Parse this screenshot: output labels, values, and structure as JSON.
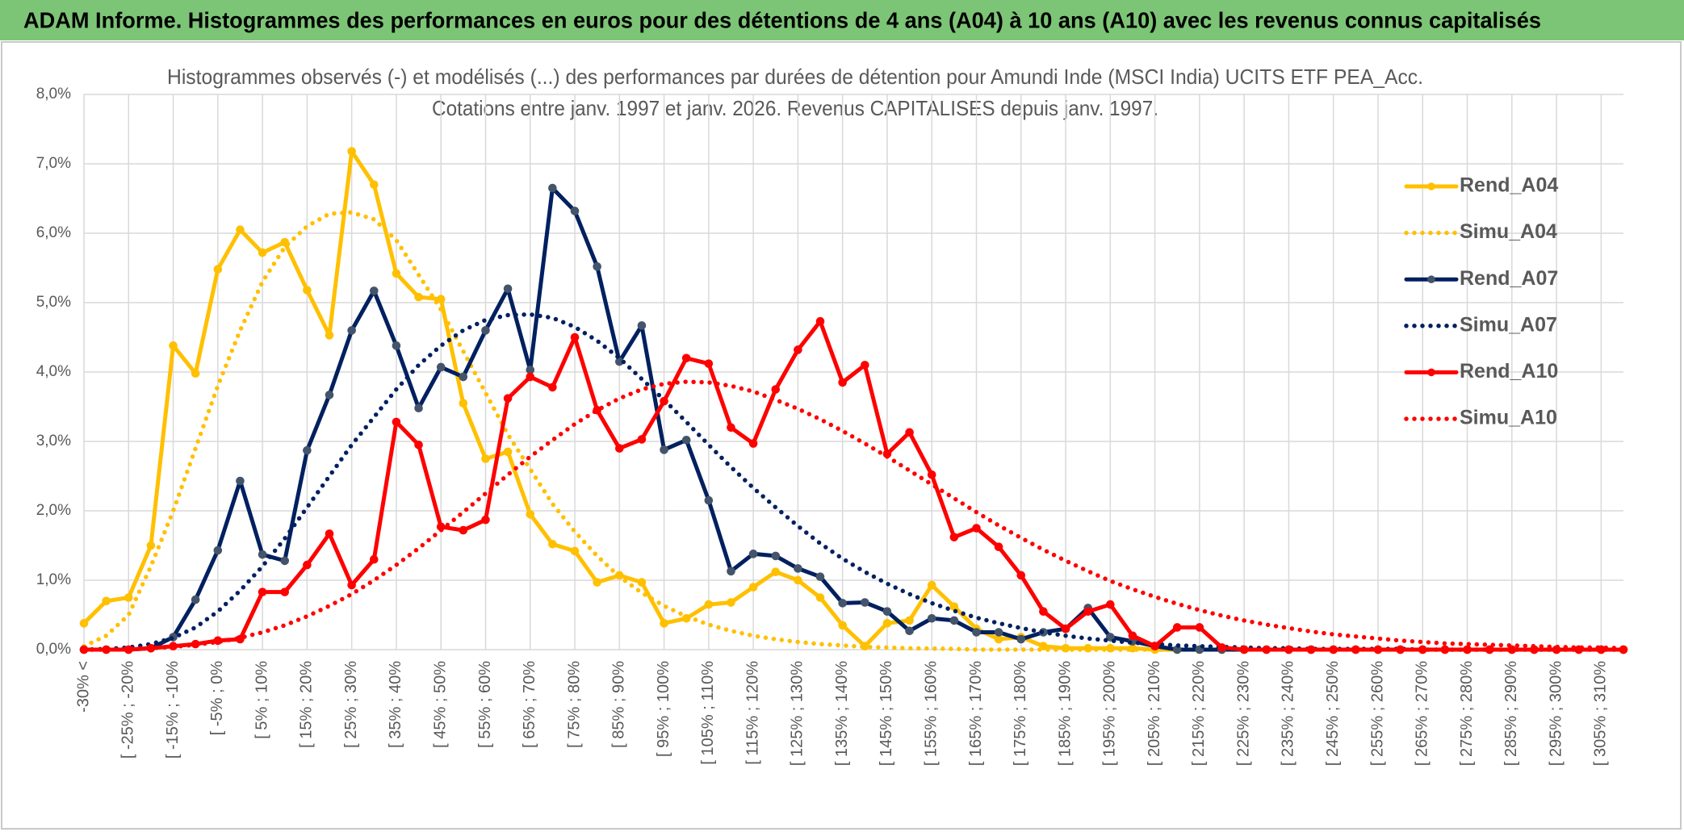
{
  "header": {
    "title": "ADAM Informe. Histogrammes des performances en euros pour des détentions de 4 ans (A04) à 10 ans (A10) avec les revenus connus capitalisés"
  },
  "chart_data": {
    "type": "line",
    "title": "Histogrammes observés (-) et modélisés (...) des performances par durées de détention pour Amundi Inde (MSCI India) UCITS ETF PEA_Acc.",
    "subtitle": "Cotations entre janv. 1997 et janv. 2026. Revenus CAPITALISES depuis janv. 1997.",
    "categories": [
      "-30% <",
      null,
      "[ -25% ; -20%",
      null,
      "[ -15% ; -10%",
      null,
      "[ -5% ; 0%",
      null,
      "[ 5% ; 10%",
      null,
      "[ 15% ; 20%",
      null,
      "[ 25% ; 30%",
      null,
      "[ 35% ; 40%",
      null,
      "[ 45% ; 50%",
      null,
      "[ 55% ; 60%",
      null,
      "[ 65% ; 70%",
      null,
      "[ 75% ; 80%",
      null,
      "[ 85% ; 90%",
      null,
      "[ 95% ; 100%",
      null,
      "[ 105% ; 110%",
      null,
      "[ 115% ; 120%",
      null,
      "[ 125% ; 130%",
      null,
      "[ 135% ; 140%",
      null,
      "[ 145% ; 150%",
      null,
      "[ 155% ; 160%",
      null,
      "[ 165% ; 170%",
      null,
      "[ 175% ; 180%",
      null,
      "[ 185% ; 190%",
      null,
      "[ 195% ; 200%",
      null,
      "[ 205% ; 210%",
      null,
      "[ 215% ; 220%",
      null,
      "[ 225% ; 230%",
      null,
      "[ 235% ; 240%",
      null,
      "[ 245% ; 250%",
      null,
      "[ 255% ; 260%",
      null,
      "[ 265% ; 270%",
      null,
      "[ 275% ; 280%",
      null,
      "[ 285% ; 290%",
      null,
      "[ 295% ; 300%",
      null,
      "[ 305% ; 310%",
      null
    ],
    "ylim": [
      0,
      8
    ],
    "yticks": [
      {
        "value": 0,
        "label": "0,0%"
      },
      {
        "value": 1,
        "label": "1,0%"
      },
      {
        "value": 2,
        "label": "2,0%"
      },
      {
        "value": 3,
        "label": "3,0%"
      },
      {
        "value": 4,
        "label": "4,0%"
      },
      {
        "value": 5,
        "label": "5,0%"
      },
      {
        "value": 6,
        "label": "6,0%"
      },
      {
        "value": 7,
        "label": "7,0%"
      },
      {
        "value": 8,
        "label": "8,0%"
      }
    ],
    "grid": true,
    "legend": "right",
    "series": [
      {
        "name": "Rend_A04",
        "color": "#ffc000",
        "marker_color": "#ffc000",
        "dash": "solid",
        "values": [
          0.38,
          0.7,
          0.75,
          1.5,
          4.38,
          3.98,
          5.48,
          6.05,
          5.72,
          5.87,
          5.18,
          4.53,
          7.18,
          6.7,
          5.42,
          5.08,
          5.05,
          3.55,
          2.75,
          2.85,
          1.95,
          1.52,
          1.42,
          0.97,
          1.07,
          0.97,
          0.38,
          0.45,
          0.65,
          0.68,
          0.9,
          1.12,
          1.0,
          0.75,
          0.35,
          0.05,
          0.38,
          0.42,
          0.93,
          0.62,
          0.3,
          0.15,
          0.18,
          0.05,
          0.02,
          0.02,
          0.02,
          0.02,
          0,
          0,
          0,
          0,
          0,
          0,
          0,
          0,
          0,
          0,
          0,
          0,
          0,
          0,
          0,
          0,
          0,
          0,
          0,
          0,
          0,
          0
        ]
      },
      {
        "name": "Simu_A04",
        "color": "#ffc000",
        "dash": "dotted",
        "values": [
          0.05,
          0.2,
          0.5,
          1.2,
          2.0,
          2.9,
          3.8,
          4.6,
          5.3,
          5.8,
          6.1,
          6.28,
          6.3,
          6.2,
          5.9,
          5.4,
          4.9,
          4.3,
          3.7,
          3.1,
          2.6,
          2.1,
          1.7,
          1.35,
          1.05,
          0.82,
          0.63,
          0.48,
          0.36,
          0.27,
          0.2,
          0.15,
          0.11,
          0.08,
          0.06,
          0.04,
          0.03,
          0.02,
          0.015,
          0.01,
          0,
          0,
          0,
          0,
          0,
          0,
          0,
          0,
          0,
          0,
          0,
          0,
          0,
          0,
          0,
          0,
          0,
          0,
          0,
          0,
          0,
          0,
          0,
          0,
          0,
          0,
          0,
          0,
          0,
          0
        ]
      },
      {
        "name": "Rend_A07",
        "color": "#002060",
        "marker_color": "#44546a",
        "dash": "solid",
        "values": [
          0,
          0,
          0,
          0.02,
          0.18,
          0.72,
          1.43,
          2.43,
          1.37,
          1.28,
          2.87,
          3.67,
          4.6,
          5.17,
          4.38,
          3.48,
          4.07,
          3.93,
          4.6,
          5.2,
          4.03,
          6.65,
          6.32,
          5.52,
          4.15,
          4.67,
          2.88,
          3.02,
          2.15,
          1.13,
          1.38,
          1.35,
          1.17,
          1.05,
          0.67,
          0.68,
          0.55,
          0.27,
          0.45,
          0.42,
          0.25,
          0.25,
          0.15,
          0.25,
          0.3,
          0.6,
          0.18,
          0.12,
          0.05,
          0,
          0,
          0,
          0,
          0,
          0,
          0,
          0,
          0,
          0,
          0,
          0,
          0,
          0,
          0,
          0,
          0,
          0,
          0,
          0,
          0
        ]
      },
      {
        "name": "Simu_A07",
        "color": "#002060",
        "dash": "dotted",
        "values": [
          0,
          0.01,
          0.03,
          0.08,
          0.17,
          0.32,
          0.55,
          0.85,
          1.2,
          1.6,
          2.05,
          2.5,
          2.95,
          3.35,
          3.75,
          4.1,
          4.38,
          4.6,
          4.75,
          4.82,
          4.83,
          4.78,
          4.65,
          4.45,
          4.2,
          3.9,
          3.6,
          3.28,
          2.95,
          2.63,
          2.33,
          2.05,
          1.78,
          1.53,
          1.31,
          1.12,
          0.95,
          0.8,
          0.67,
          0.56,
          0.46,
          0.38,
          0.31,
          0.25,
          0.2,
          0.16,
          0.13,
          0.1,
          0.08,
          0.06,
          0.05,
          0.04,
          0.03,
          0.02,
          0.02,
          0.01,
          0.01,
          0.01,
          0.01,
          0.01,
          0,
          0,
          0,
          0,
          0,
          0,
          0,
          0,
          0,
          0
        ]
      },
      {
        "name": "Rend_A10",
        "color": "#ff0000",
        "marker_color": "#ff0000",
        "dash": "solid",
        "values": [
          0,
          0,
          0,
          0.02,
          0.05,
          0.08,
          0.13,
          0.15,
          0.83,
          0.83,
          1.22,
          1.67,
          0.93,
          1.3,
          3.28,
          2.95,
          1.77,
          1.72,
          1.87,
          3.62,
          3.93,
          3.78,
          4.5,
          3.45,
          2.9,
          3.03,
          3.58,
          4.2,
          4.12,
          3.2,
          2.97,
          3.75,
          4.32,
          4.73,
          3.85,
          4.1,
          2.82,
          3.13,
          2.52,
          1.62,
          1.75,
          1.48,
          1.07,
          0.55,
          0.3,
          0.55,
          0.65,
          0.2,
          0.05,
          0.32,
          0.32,
          0.03,
          0,
          0,
          0,
          0,
          0,
          0,
          0,
          0,
          0,
          0,
          0,
          0,
          0,
          0,
          0,
          0,
          0,
          0
        ]
      },
      {
        "name": "Simu_A10",
        "color": "#ff0000",
        "dash": "dotted",
        "values": [
          0,
          0,
          0.01,
          0.02,
          0.04,
          0.07,
          0.11,
          0.17,
          0.25,
          0.35,
          0.48,
          0.63,
          0.8,
          1.0,
          1.22,
          1.46,
          1.72,
          1.98,
          2.25,
          2.52,
          2.78,
          3.02,
          3.25,
          3.45,
          3.62,
          3.75,
          3.83,
          3.86,
          3.85,
          3.8,
          3.72,
          3.6,
          3.47,
          3.32,
          3.15,
          2.97,
          2.78,
          2.58,
          2.38,
          2.18,
          1.98,
          1.79,
          1.61,
          1.44,
          1.28,
          1.13,
          0.99,
          0.87,
          0.76,
          0.66,
          0.57,
          0.49,
          0.42,
          0.36,
          0.31,
          0.26,
          0.22,
          0.19,
          0.16,
          0.13,
          0.11,
          0.09,
          0.08,
          0.07,
          0.06,
          0.05,
          0.04,
          0.03,
          0.03,
          0.02
        ]
      }
    ]
  }
}
